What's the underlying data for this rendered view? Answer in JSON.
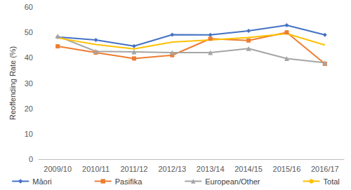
{
  "chart_data": {
    "type": "line",
    "y_label": "Reoffending Rate (%)",
    "categories": [
      "2009/10",
      "2010/11",
      "2011/12",
      "2012/13",
      "2013/14",
      "2014/15",
      "2015/16",
      "2016/17"
    ],
    "series": [
      {
        "name": "Māori",
        "color": "#4472c4",
        "marker": "diamond",
        "values": [
          48.2,
          47,
          44.6,
          49.1,
          49,
          50.6,
          52.8,
          49
        ]
      },
      {
        "name": "Pasifika",
        "color": "#ed7d31",
        "marker": "square",
        "values": [
          44.5,
          42,
          39.7,
          41,
          47.5,
          46.8,
          50,
          37.6
        ]
      },
      {
        "name": "European/Other",
        "color": "#a5a5a5",
        "marker": "triangle",
        "values": [
          48.5,
          42.5,
          42.3,
          42,
          42,
          43.6,
          39.7,
          38
        ]
      },
      {
        "name": "Total",
        "color": "#ffc000",
        "marker": "none",
        "values": [
          47.8,
          45.2,
          43.5,
          46.2,
          47,
          48,
          49.5,
          45
        ]
      }
    ],
    "ylim": [
      0,
      60
    ],
    "yticks": [
      0,
      10,
      20,
      30,
      40,
      50,
      60
    ],
    "grid": false,
    "legend": "bottom"
  }
}
